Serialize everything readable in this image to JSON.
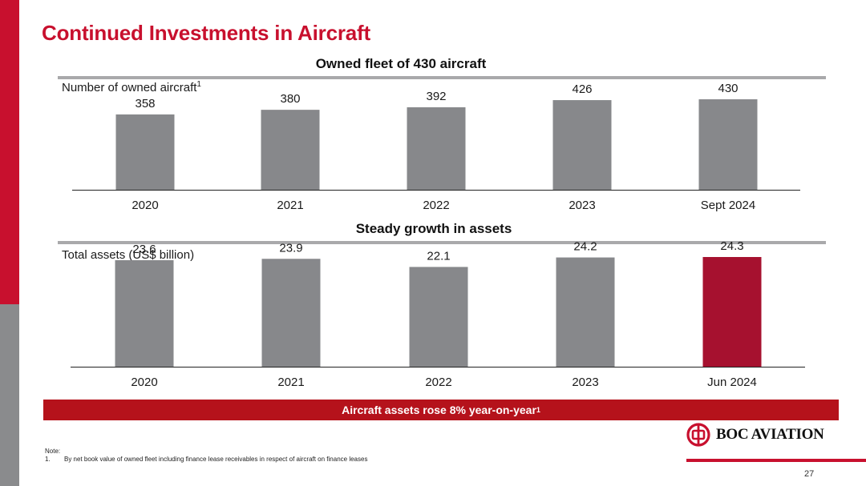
{
  "slide": {
    "title": "Continued Investments in Aircraft",
    "page_number": "27"
  },
  "fleet": {
    "section_title": "Owned fleet of 430 aircraft",
    "metric_label": "Number of owned aircraft",
    "metric_footnote": "1"
  },
  "assets": {
    "section_title": "Steady growth in assets",
    "metric_label": "Total assets (US$ billion)"
  },
  "banner": {
    "text": "Aircraft assets rose 8% year-on-year",
    "footnote": "1"
  },
  "note": {
    "heading": "Note:",
    "items": [
      {
        "num": "1.",
        "text": "By net book value of owned fleet including finance lease receivables in respect of aircraft on finance leases"
      }
    ]
  },
  "logo": {
    "text": "BOC AVIATION"
  },
  "colors": {
    "brand_red": "#c8102e",
    "bar_grey": "#87888b",
    "highlight": "#a6112f",
    "rule_grey": "#a9a9ab"
  },
  "chart_data": [
    {
      "type": "bar",
      "title": "Owned fleet of 430 aircraft",
      "ylabel": "Number of owned aircraft",
      "categories": [
        "2020",
        "2021",
        "2022",
        "2023",
        "Sept 2024"
      ],
      "values": [
        358,
        380,
        392,
        426,
        430
      ],
      "labels": [
        "358",
        "380",
        "392",
        "426",
        "430"
      ],
      "ylim": [
        0,
        530
      ],
      "highlight_index": -1
    },
    {
      "type": "bar",
      "title": "Steady growth in assets",
      "ylabel": "Total assets (US$ billion)",
      "categories": [
        "2020",
        "2021",
        "2022",
        "2023",
        "Jun 2024"
      ],
      "values": [
        23.6,
        23.9,
        22.1,
        24.2,
        24.3
      ],
      "labels": [
        "23.6",
        "23.9",
        "22.1",
        "24.2",
        "24.3"
      ],
      "ylim": [
        0,
        30
      ],
      "highlight_index": 4
    }
  ]
}
